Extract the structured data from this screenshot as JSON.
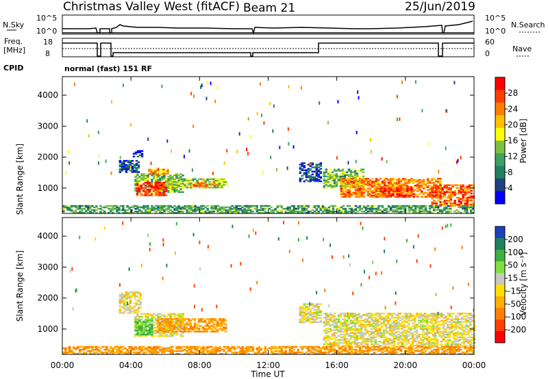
{
  "header": {
    "title": "Christmas Valley West (fitACF)",
    "beam": "Beam 21",
    "date": "25/Jun/2019"
  },
  "params_panel": {
    "nsky_label": "N.Sky",
    "nsky_ticks": [
      "10^5",
      "10^0"
    ],
    "nsearch_label": "N.Search",
    "nsearch_ticks": [
      "10^5",
      "10^0"
    ],
    "freq_label": "Freq.",
    "freq_unit": "[MHz]",
    "freq_ticks": [
      "18",
      "8"
    ],
    "nave_label": "Nave",
    "nave_ticks": [
      "60",
      "0"
    ],
    "cpid_label": "CPID",
    "cpid_value": "normal (fast) 151 RF"
  },
  "axes": {
    "ylabel": "Slant Range [km]",
    "xlabel": "Time UT",
    "x_ticks": [
      "00:00",
      "04:00",
      "08:00",
      "12:00",
      "16:00",
      "20:00",
      "00:00"
    ],
    "y_ticks": [
      "1000",
      "2000",
      "3000",
      "4000"
    ],
    "x_range_hours": [
      0,
      24
    ],
    "y_range_km": [
      180,
      4600
    ]
  },
  "colorbars": {
    "power": {
      "label": "Power [dB]",
      "ticks": [
        "28",
        "24",
        "20",
        "16",
        "12",
        "8",
        "4"
      ],
      "colors": [
        "#ff0000",
        "#ff4000",
        "#ff8000",
        "#ffc000",
        "#ffff00",
        "#80c040",
        "#40a060",
        "#208060",
        "#204080",
        "#0000ff"
      ]
    },
    "velocity": {
      "label": "Velocity [m s⁻¹]",
      "ticks": [
        "200",
        "100",
        "50",
        "15",
        "-15",
        "-50",
        "-100",
        "-200"
      ],
      "colors": [
        "#2040c0",
        "#208060",
        "#40b040",
        "#80e040",
        "#c8c8c0",
        "#ffe000",
        "#ffb000",
        "#ff8000",
        "#ff4000",
        "#ff0000"
      ]
    }
  },
  "chart_data": [
    {
      "type": "heatmap",
      "panel": "power",
      "x_unit": "hours UT",
      "y_unit": "slant range km",
      "regions": [
        {
          "t": [
            3.3,
            4.5
          ],
          "r": [
            1500,
            1900
          ],
          "value_db": 6
        },
        {
          "t": [
            4.1,
            4.6
          ],
          "r": [
            2000,
            2200
          ],
          "value_db": 4
        },
        {
          "t": [
            4.2,
            7.0
          ],
          "r": [
            850,
            1450
          ],
          "value_db": 14
        },
        {
          "t": [
            4.3,
            6.0
          ],
          "r": [
            750,
            1200
          ],
          "value_db": 28
        },
        {
          "t": [
            5.0,
            6.2
          ],
          "r": [
            1400,
            1600
          ],
          "value_db": 22
        },
        {
          "t": [
            6.0,
            9.5
          ],
          "r": [
            1000,
            1300
          ],
          "value_db": 16
        },
        {
          "t": [
            7.5,
            9.0
          ],
          "r": [
            1050,
            1150
          ],
          "value_db": 24
        },
        {
          "t": [
            13.8,
            15.0
          ],
          "r": [
            1200,
            1800
          ],
          "value_db": 6
        },
        {
          "t": [
            15.2,
            17.5
          ],
          "r": [
            1000,
            1600
          ],
          "value_db": 14
        },
        {
          "t": [
            16.2,
            22.0
          ],
          "r": [
            700,
            1300
          ],
          "value_db": 24
        },
        {
          "t": [
            18.5,
            20.5
          ],
          "r": [
            700,
            1000
          ],
          "value_db": 28
        },
        {
          "t": [
            21.5,
            24.0
          ],
          "r": [
            400,
            1100
          ],
          "value_db": 26
        },
        {
          "t": [
            0.0,
            24.0
          ],
          "r": [
            180,
            420
          ],
          "value_db": 12
        }
      ]
    },
    {
      "type": "heatmap",
      "panel": "velocity",
      "x_unit": "hours UT",
      "y_unit": "slant range km",
      "regions": [
        {
          "t": [
            3.3,
            4.6
          ],
          "r": [
            1500,
            2200
          ],
          "value_ms": 0
        },
        {
          "t": [
            4.2,
            7.0
          ],
          "r": [
            750,
            1500
          ],
          "value_ms": 0
        },
        {
          "t": [
            4.2,
            5.2
          ],
          "r": [
            800,
            1300
          ],
          "value_ms": 50
        },
        {
          "t": [
            5.5,
            9.5
          ],
          "r": [
            900,
            1350
          ],
          "value_ms": -50
        },
        {
          "t": [
            13.8,
            15.0
          ],
          "r": [
            1200,
            1800
          ],
          "value_ms": 0
        },
        {
          "t": [
            15.2,
            24.0
          ],
          "r": [
            400,
            1500
          ],
          "value_ms": 0
        },
        {
          "t": [
            0.0,
            24.0
          ],
          "r": [
            180,
            420
          ],
          "value_ms": -50
        }
      ]
    }
  ]
}
